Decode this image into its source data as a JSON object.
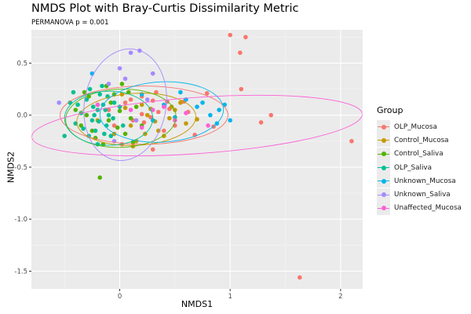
{
  "chart_data": {
    "type": "scatter",
    "title": "NMDS Plot with Bray-Curtis Dissimilarity Metric",
    "subtitle": "PERMANOVA p = 0.001",
    "xlabel": "NMDS1",
    "ylabel": "NMDS2",
    "xlim": [
      -0.8,
      2.2
    ],
    "ylim": [
      -1.67,
      0.82
    ],
    "x_ticks": [
      0,
      1,
      2
    ],
    "y_ticks": [
      0.5,
      0.0,
      -0.5,
      -1.0,
      -1.5
    ],
    "x_tick_labels": [
      "0",
      "1",
      "2"
    ],
    "y_tick_labels": [
      "0.5",
      "0.0",
      "-0.5",
      "-1.0",
      "-1.5"
    ],
    "grid": true,
    "legend_position": "right",
    "legend_title": "Group",
    "series": [
      {
        "name": "OLP_Mucosa",
        "color": "#F8766D",
        "ellipse": {
          "cx": 0.22,
          "cy": 0.0,
          "rx": 0.76,
          "ry": 0.28,
          "angle": 0
        },
        "points": [
          [
            1.0,
            0.77
          ],
          [
            1.14,
            0.75
          ],
          [
            1.09,
            0.6
          ],
          [
            0.79,
            0.21
          ],
          [
            0.58,
            0.13
          ],
          [
            0.45,
            0.06
          ],
          [
            0.3,
            0.14
          ],
          [
            0.62,
            0.03
          ],
          [
            0.85,
            -0.11
          ],
          [
            1.1,
            0.25
          ],
          [
            1.28,
            -0.07
          ],
          [
            1.37,
            0.0
          ],
          [
            2.1,
            -0.25
          ],
          [
            1.63,
            -1.56
          ],
          [
            0.22,
            -0.07
          ],
          [
            0.35,
            0.03
          ],
          [
            0.12,
            -0.05
          ],
          [
            0.4,
            -0.15
          ],
          [
            0.2,
            0.18
          ],
          [
            0.05,
            0.12
          ],
          [
            -0.05,
            -0.1
          ],
          [
            0.28,
            -0.02
          ],
          [
            0.5,
            -0.1
          ],
          [
            0.68,
            -0.19
          ],
          [
            0.3,
            -0.33
          ],
          [
            0.1,
            0.15
          ],
          [
            0.43,
            0.13
          ],
          [
            0.2,
            0.01
          ],
          [
            0.02,
            -0.28
          ],
          [
            0.33,
            0.22
          ],
          [
            -0.1,
            0.05
          ]
        ]
      },
      {
        "name": "Control_Mucosa",
        "color": "#C49A00",
        "ellipse": {
          "cx": 0.15,
          "cy": -0.04,
          "rx": 0.54,
          "ry": 0.25,
          "angle": -3
        },
        "points": [
          [
            0.1,
            -0.1
          ],
          [
            0.25,
            0.0
          ],
          [
            0.45,
            -0.03
          ],
          [
            0.6,
            -0.08
          ],
          [
            0.35,
            -0.15
          ],
          [
            0.15,
            -0.25
          ],
          [
            0.5,
            0.05
          ],
          [
            0.2,
            0.1
          ],
          [
            0.05,
            0.07
          ],
          [
            0.32,
            -0.06
          ],
          [
            0.55,
            0.12
          ],
          [
            0.7,
            -0.04
          ],
          [
            0.4,
            -0.2
          ],
          [
            -0.05,
            -0.18
          ],
          [
            0.12,
            -0.3
          ],
          [
            0.28,
            0.06
          ],
          [
            0.02,
            0.2
          ],
          [
            -0.2,
            -0.05
          ],
          [
            0.23,
            -0.18
          ],
          [
            0.47,
            0.08
          ]
        ]
      },
      {
        "name": "Control_Saliva",
        "color": "#53B400",
        "ellipse": {
          "cx": 0.01,
          "cy": -0.03,
          "rx": 0.5,
          "ry": 0.28,
          "angle": -2
        },
        "points": [
          [
            -0.18,
            -0.6
          ],
          [
            -0.3,
            0.0
          ],
          [
            -0.2,
            0.1
          ],
          [
            -0.1,
            -0.05
          ],
          [
            0.0,
            0.04
          ],
          [
            -0.25,
            -0.15
          ],
          [
            0.05,
            -0.18
          ],
          [
            -0.05,
            0.2
          ],
          [
            0.1,
            -0.03
          ],
          [
            -0.35,
            -0.1
          ],
          [
            -0.12,
            0.28
          ],
          [
            0.15,
            0.08
          ],
          [
            -0.28,
            0.18
          ],
          [
            0.02,
            0.3
          ],
          [
            -0.15,
            -0.28
          ],
          [
            0.2,
            -0.1
          ],
          [
            -0.4,
            0.05
          ],
          [
            -0.08,
            0.12
          ],
          [
            0.08,
            0.22
          ],
          [
            -0.22,
            -0.22
          ],
          [
            0.12,
            -0.26
          ],
          [
            -0.32,
            0.22
          ],
          [
            -0.02,
            -0.12
          ]
        ]
      },
      {
        "name": "OLP_Saliva",
        "color": "#00C094",
        "ellipse": {
          "cx": -0.1,
          "cy": -0.03,
          "rx": 0.4,
          "ry": 0.26,
          "angle": 0
        },
        "points": [
          [
            -0.2,
            0.05
          ],
          [
            -0.15,
            0.1
          ],
          [
            -0.1,
            0.0
          ],
          [
            -0.25,
            -0.05
          ],
          [
            -0.3,
            0.15
          ],
          [
            -0.18,
            0.2
          ],
          [
            -0.05,
            0.12
          ],
          [
            -0.12,
            -0.1
          ],
          [
            -0.22,
            -0.15
          ],
          [
            -0.35,
            0.02
          ],
          [
            -0.28,
            -0.2
          ],
          [
            -0.08,
            -0.2
          ],
          [
            0.0,
            0.08
          ],
          [
            -0.16,
            0.28
          ],
          [
            -0.4,
            -0.08
          ],
          [
            -0.45,
            0.12
          ],
          [
            -0.5,
            -0.2
          ],
          [
            -0.42,
            0.22
          ],
          [
            -0.2,
            -0.28
          ],
          [
            -0.13,
            0.05
          ],
          [
            -0.24,
            0.08
          ],
          [
            -0.06,
            -0.03
          ],
          [
            -0.33,
            -0.13
          ],
          [
            -0.19,
            -0.06
          ],
          [
            -0.27,
            0.25
          ],
          [
            0.03,
            -0.1
          ],
          [
            -0.11,
            0.18
          ],
          [
            -0.38,
            0.1
          ],
          [
            -0.14,
            -0.18
          ],
          [
            -0.23,
            0.0
          ]
        ]
      },
      {
        "name": "Unknown_Mucosa",
        "color": "#00B6EB",
        "ellipse": {
          "cx": 0.38,
          "cy": 0.03,
          "rx": 0.56,
          "ry": 0.29,
          "angle": -3
        },
        "points": [
          [
            0.9,
            0.05
          ],
          [
            1.0,
            -0.05
          ],
          [
            0.82,
            0.0
          ],
          [
            0.7,
            0.08
          ],
          [
            0.55,
            0.22
          ],
          [
            0.6,
            0.15
          ],
          [
            0.95,
            0.1
          ],
          [
            0.88,
            -0.08
          ],
          [
            0.4,
            0.1
          ],
          [
            0.3,
            -0.05
          ],
          [
            -0.25,
            0.4
          ],
          [
            0.2,
            0.2
          ],
          [
            0.75,
            0.12
          ],
          [
            0.5,
            -0.02
          ]
        ]
      },
      {
        "name": "Unknown_Saliva",
        "color": "#A58AFF",
        "ellipse": {
          "cx": 0.05,
          "cy": 0.1,
          "rx": 0.37,
          "ry": 0.54,
          "angle": 10
        },
        "points": [
          [
            0.1,
            0.6
          ],
          [
            0.18,
            0.62
          ],
          [
            -0.55,
            0.12
          ],
          [
            0.0,
            0.45
          ],
          [
            -0.1,
            0.3
          ],
          [
            0.05,
            0.35
          ],
          [
            0.25,
            0.15
          ],
          [
            -0.05,
            -0.25
          ],
          [
            0.15,
            -0.05
          ],
          [
            0.3,
            0.4
          ]
        ]
      },
      {
        "name": "Unaffected_Mucosa",
        "color": "#FB61D7",
        "ellipse": {
          "cx": 0.7,
          "cy": -0.1,
          "rx": 1.5,
          "ry": 0.27,
          "angle": -4
        },
        "points": [
          [
            0.3,
            0.05
          ],
          [
            0.5,
            -0.05
          ],
          [
            0.2,
            -0.12
          ],
          [
            0.6,
            0.02
          ],
          [
            0.4,
            0.08
          ],
          [
            -0.2,
            0.1
          ],
          [
            0.1,
            0.05
          ],
          [
            0.8,
            -0.1
          ]
        ]
      }
    ]
  }
}
